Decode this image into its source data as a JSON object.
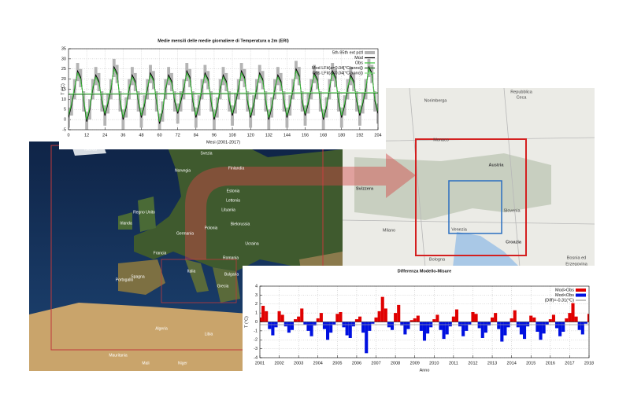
{
  "chart_data": [
    {
      "type": "line",
      "title": "Medie mensili delle medie giornaliere di Temperatura a 2m (ERI)",
      "xlabel": "Mesi (2001-2017)",
      "ylabel": "T (°C)",
      "x": [
        0,
        2,
        4,
        6,
        8,
        10,
        12,
        14,
        16,
        18,
        20,
        22,
        24,
        26,
        28,
        30,
        32,
        34,
        36,
        38,
        40,
        42,
        44,
        46,
        48,
        50,
        52,
        54,
        56,
        58,
        60,
        62,
        64,
        66,
        68,
        70,
        72,
        74,
        76,
        78,
        80,
        82,
        84,
        86,
        88,
        90,
        92,
        94,
        96,
        98,
        100,
        102,
        104,
        106,
        108,
        110,
        112,
        114,
        116,
        118,
        120,
        122,
        124,
        126,
        128,
        130,
        132,
        134,
        136,
        138,
        140,
        142,
        144,
        146,
        148,
        150,
        152,
        154,
        156,
        158,
        160,
        162,
        164,
        166,
        168,
        170,
        172,
        174,
        176,
        178,
        180,
        182,
        184,
        186,
        188,
        190,
        192,
        194,
        196,
        198,
        200,
        202,
        204
      ],
      "series": [
        {
          "name": "5th-95th ext pctl",
          "color": "#b4b4b4",
          "low": [
            -4,
            2,
            10,
            19,
            16,
            4,
            -6,
            0,
            10,
            17,
            14,
            4,
            -3,
            3,
            10,
            21,
            18,
            4,
            -5,
            1,
            10,
            17,
            14,
            4,
            -4,
            2,
            10,
            18,
            15,
            4,
            -7,
            -1,
            10,
            17,
            14,
            4,
            -2,
            4,
            10,
            19,
            16,
            4,
            -4,
            2,
            10,
            18,
            15,
            4,
            -5,
            1,
            10,
            17,
            14,
            4,
            -3,
            3,
            10,
            19,
            16,
            4,
            -4,
            2,
            10,
            18,
            15,
            4,
            -5,
            1,
            10,
            17,
            14,
            4,
            -4,
            2,
            10,
            20,
            17,
            4,
            -3,
            3,
            10,
            18,
            15,
            4,
            -5,
            1,
            10,
            19,
            16,
            4,
            -4,
            2,
            10,
            17,
            14,
            4,
            -3,
            3,
            10,
            21,
            18,
            4,
            -2
          ],
          "high": [
            6,
            12,
            20,
            28,
            25,
            14,
            4,
            10,
            20,
            26,
            23,
            14,
            7,
            13,
            20,
            30,
            27,
            14,
            5,
            11,
            20,
            26,
            23,
            14,
            6,
            12,
            20,
            27,
            24,
            14,
            3,
            9,
            20,
            26,
            23,
            14,
            8,
            14,
            20,
            28,
            25,
            14,
            6,
            12,
            20,
            27,
            24,
            14,
            5,
            11,
            20,
            26,
            23,
            14,
            7,
            13,
            20,
            28,
            25,
            14,
            6,
            12,
            20,
            27,
            24,
            14,
            5,
            11,
            20,
            26,
            23,
            14,
            6,
            12,
            20,
            29,
            26,
            14,
            7,
            13,
            20,
            27,
            24,
            14,
            5,
            11,
            20,
            28,
            25,
            14,
            6,
            12,
            20,
            26,
            23,
            14,
            7,
            13,
            20,
            30,
            27,
            14,
            8
          ]
        },
        {
          "name": "Mod",
          "color": "#000000",
          "values": [
            1,
            7,
            15,
            24,
            21,
            9,
            -1,
            5,
            15,
            22,
            19,
            9,
            2,
            8,
            15,
            26,
            23,
            9,
            0,
            6,
            15,
            22,
            19,
            9,
            1,
            7,
            15,
            23,
            20,
            9,
            -2,
            4,
            15,
            22,
            19,
            9,
            3,
            9,
            15,
            24,
            21,
            9,
            1,
            7,
            15,
            23,
            20,
            9,
            0,
            6,
            15,
            22,
            19,
            9,
            2,
            8,
            15,
            24,
            21,
            9,
            1,
            7,
            15,
            23,
            20,
            9,
            0,
            6,
            15,
            22,
            19,
            9,
            1,
            7,
            15,
            25,
            22,
            9,
            2,
            8,
            15,
            23,
            20,
            9,
            0,
            6,
            15,
            24,
            21,
            9,
            1,
            7,
            15,
            22,
            19,
            9,
            2,
            8,
            15,
            26,
            23,
            9,
            3
          ]
        },
        {
          "name": "Obs",
          "color": "#3cc43c",
          "values": [
            2,
            8,
            16,
            23,
            20,
            10,
            0,
            6,
            16,
            21,
            18,
            10,
            3,
            9,
            16,
            25,
            22,
            10,
            1,
            7,
            16,
            21,
            18,
            10,
            2,
            8,
            16,
            22,
            19,
            10,
            -1,
            5,
            16,
            21,
            18,
            10,
            4,
            10,
            16,
            23,
            20,
            10,
            2,
            8,
            16,
            22,
            19,
            10,
            1,
            7,
            16,
            21,
            18,
            10,
            3,
            9,
            16,
            23,
            20,
            10,
            2,
            8,
            16,
            22,
            19,
            10,
            1,
            7,
            16,
            21,
            18,
            10,
            2,
            8,
            16,
            24,
            21,
            10,
            3,
            9,
            16,
            22,
            19,
            10,
            1,
            7,
            16,
            23,
            20,
            10,
            2,
            8,
            16,
            21,
            18,
            10,
            3,
            9,
            16,
            25,
            22,
            10,
            4
          ]
        },
        {
          "name": "Mod LFit(a=0.04[°C/anno])",
          "color": "#1f6e1f",
          "x": [
            0,
            204
          ],
          "values": [
            12.4,
            13.1
          ]
        },
        {
          "name": "Obs LFit(a=0.04[°C/anno])",
          "color": "#7fe07f",
          "x": [
            0,
            204
          ],
          "values": [
            12.8,
            13.5
          ]
        }
      ],
      "xlim": [
        0,
        204
      ],
      "ylim": [
        -5,
        35
      ],
      "xticks": [
        0,
        12,
        24,
        36,
        48,
        60,
        72,
        84,
        96,
        108,
        120,
        132,
        144,
        156,
        168,
        180,
        192,
        204
      ],
      "yticks": [
        -5,
        0,
        5,
        10,
        15,
        20,
        25,
        30,
        35
      ],
      "grid": true
    },
    {
      "type": "area",
      "title": "Differenza Modello-Misure",
      "xlabel": "Anno",
      "ylabel": "T (°C)",
      "x": [
        0,
        2,
        4,
        6,
        8,
        10,
        12,
        14,
        16,
        18,
        20,
        22,
        24,
        26,
        28,
        30,
        32,
        34,
        36,
        38,
        40,
        42,
        44,
        46,
        48,
        50,
        52,
        54,
        56,
        58,
        60,
        62,
        64,
        66,
        68,
        70,
        72,
        74,
        76,
        78,
        80,
        82,
        84,
        86,
        88,
        90,
        92,
        94,
        96,
        98,
        100,
        102,
        104,
        106,
        108,
        110,
        112,
        114,
        116,
        118,
        120,
        122,
        124,
        126,
        128,
        130,
        132,
        134,
        136,
        138,
        140,
        142,
        144,
        146,
        148,
        150,
        152,
        154,
        156,
        158,
        160,
        162,
        164,
        166,
        168,
        170,
        172,
        174,
        176,
        178,
        180,
        182,
        184,
        186,
        188,
        190,
        192,
        194,
        196,
        198,
        200,
        202,
        204
      ],
      "values": [
        0.5,
        1.8,
        1.2,
        -0.8,
        -1.5,
        -0.6,
        1.2,
        0.8,
        -0.5,
        -1.2,
        -0.9,
        0.3,
        0.6,
        1.5,
        -0.3,
        -1.0,
        -1.6,
        -0.4,
        0.4,
        1.0,
        -0.8,
        -2.0,
        -1.2,
        -0.3,
        0.9,
        1.1,
        -0.6,
        -1.5,
        -1.8,
        -0.5,
        0.3,
        0.6,
        -1.2,
        -3.5,
        -1.0,
        -0.2,
        0.5,
        1.2,
        2.8,
        1.5,
        -0.6,
        -0.9,
        1.0,
        1.9,
        -0.4,
        -1.4,
        -0.8,
        0.2,
        0.4,
        0.7,
        -1.0,
        -2.1,
        -1.3,
        -0.6,
        0.3,
        0.8,
        -0.9,
        -1.9,
        -1.4,
        -0.5,
        0.6,
        1.4,
        -0.5,
        -1.6,
        -1.0,
        -0.3,
        1.1,
        0.9,
        -0.7,
        -1.8,
        -1.2,
        -0.4,
        0.5,
        1.0,
        -0.8,
        -2.2,
        -1.5,
        -0.6,
        0.4,
        1.3,
        -0.6,
        -1.4,
        -1.9,
        -0.5,
        0.7,
        0.5,
        -1.1,
        -2.0,
        -1.3,
        -0.3,
        0.3,
        0.8,
        -0.7,
        -1.6,
        -1.1,
        0.4,
        1.0,
        2.1,
        0.6,
        -0.9,
        -1.4,
        -0.2,
        0.9
      ],
      "mean": -0.31,
      "legend": [
        {
          "name": "Mod>Obs",
          "color": "#e00000"
        },
        {
          "name": "Mod<Obs",
          "color": "#0010e0"
        },
        {
          "name": "(Diff)=-0.31(°C)",
          "color": "#9a9a9a"
        }
      ],
      "xlim": [
        0,
        204
      ],
      "ylim": [
        -4,
        4
      ],
      "xticks": [
        {
          "value": 0,
          "label": "2001"
        },
        {
          "value": 12,
          "label": "2002"
        },
        {
          "value": 24,
          "label": "2003"
        },
        {
          "value": 36,
          "label": "2004"
        },
        {
          "value": 48,
          "label": "2005"
        },
        {
          "value": 60,
          "label": "2006"
        },
        {
          "value": 72,
          "label": "2007"
        },
        {
          "value": 84,
          "label": "2008"
        },
        {
          "value": 96,
          "label": "2009"
        },
        {
          "value": 108,
          "label": "2010"
        },
        {
          "value": 120,
          "label": "2011"
        },
        {
          "value": 132,
          "label": "2012"
        },
        {
          "value": 144,
          "label": "2013"
        },
        {
          "value": 156,
          "label": "2014"
        },
        {
          "value": 168,
          "label": "2015"
        },
        {
          "value": 180,
          "label": "2016"
        },
        {
          "value": 192,
          "label": "2017"
        },
        {
          "value": 204,
          "label": "2018"
        }
      ],
      "yticks": [
        -4,
        -3,
        -2,
        -1,
        0,
        1,
        2,
        3,
        4
      ],
      "grid": true
    }
  ],
  "maps": {
    "europe": [
      "Islanda",
      "Svezia",
      "Norvegia",
      "Finlandia",
      "Estonia",
      "Lettonia",
      "Lituania",
      "Regno Unito",
      "Irlanda",
      "Bielorussia",
      "Germania",
      "Polonia",
      "Ucraina",
      "Francia",
      "Romania",
      "Italia",
      "Spagna",
      "Portogallo",
      "Bulgaria",
      "Grecia",
      "Algeria",
      "Libia",
      "Mauritania",
      "Mali",
      "Niger"
    ],
    "alps": [
      "Repubblica",
      "Ceca",
      "Norimberga",
      "Monaco",
      "Austria",
      "Svizzera",
      "Milano",
      "Venezia",
      "Slovenia",
      "Croazia",
      "Bologna",
      "Bosnia ed",
      "Erzegovina"
    ]
  }
}
